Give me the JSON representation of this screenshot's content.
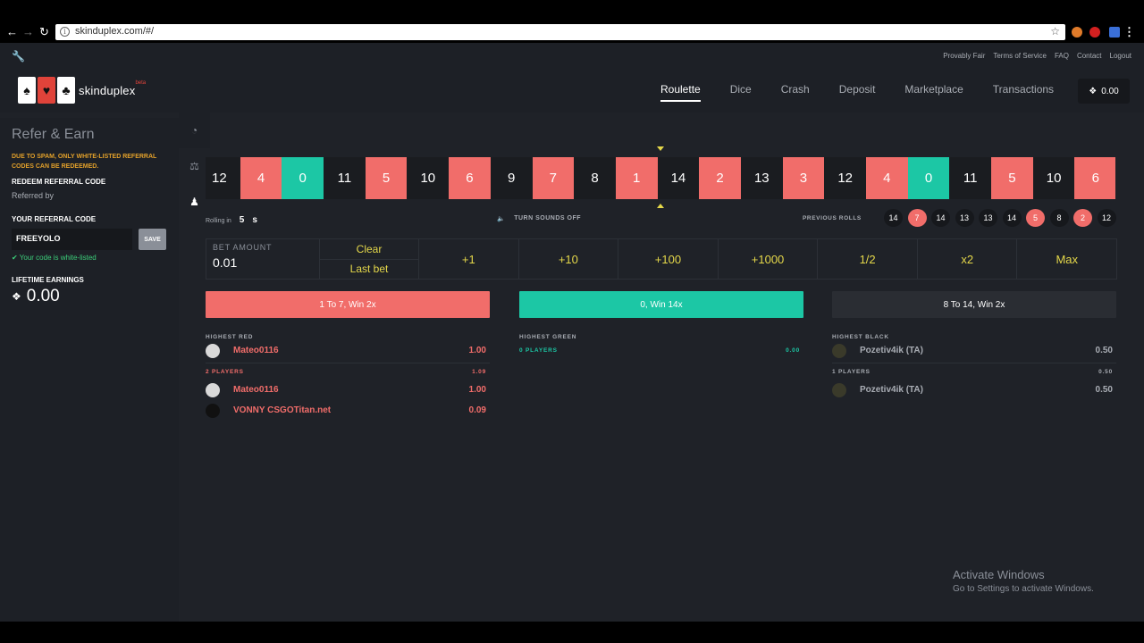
{
  "browser": {
    "url": "skinduplex.com/#/"
  },
  "site": {
    "top_links": [
      "Provably Fair",
      "Terms of Service",
      "FAQ",
      "Contact",
      "Logout"
    ],
    "logo_text": "skinduplex",
    "logo_beta": "beta",
    "nav": [
      "Roulette",
      "Dice",
      "Crash",
      "Deposit",
      "Marketplace",
      "Transactions"
    ],
    "balance": "0.00"
  },
  "sidebar": {
    "title": "Refer & Earn",
    "warning": "DUE TO SPAM, ONLY WHITE-LISTED REFERRAL CODES CAN BE REDEEMED.",
    "redeem_label": "REDEEM REFERRAL CODE",
    "referred_by": "Referred by",
    "your_code_label": "YOUR REFERRAL CODE",
    "code_value": "FREEYOLO",
    "save_label": "SAVE",
    "whitelisted": "Your code is white-listed",
    "lifetime_label": "LIFETIME EARNINGS",
    "lifetime_value": "0.00"
  },
  "roulette": {
    "strip": [
      {
        "n": "12",
        "c": "black"
      },
      {
        "n": "4",
        "c": "red"
      },
      {
        "n": "0",
        "c": "green"
      },
      {
        "n": "11",
        "c": "black"
      },
      {
        "n": "5",
        "c": "red"
      },
      {
        "n": "10",
        "c": "black"
      },
      {
        "n": "6",
        "c": "red"
      },
      {
        "n": "9",
        "c": "black"
      },
      {
        "n": "7",
        "c": "red"
      },
      {
        "n": "8",
        "c": "black"
      },
      {
        "n": "1",
        "c": "red"
      },
      {
        "n": "14",
        "c": "black"
      },
      {
        "n": "2",
        "c": "red"
      },
      {
        "n": "13",
        "c": "black"
      },
      {
        "n": "3",
        "c": "red"
      },
      {
        "n": "12",
        "c": "black"
      },
      {
        "n": "4",
        "c": "red"
      },
      {
        "n": "0",
        "c": "green"
      },
      {
        "n": "11",
        "c": "black"
      },
      {
        "n": "5",
        "c": "red"
      },
      {
        "n": "10",
        "c": "black"
      },
      {
        "n": "6",
        "c": "red"
      }
    ],
    "rolling_label": "Rolling in",
    "rolling_secs": "5",
    "rolling_unit": "s",
    "sound_label": "TURN SOUNDS OFF",
    "previous_label": "PREVIOUS ROLLS",
    "previous": [
      {
        "n": "14",
        "c": "black"
      },
      {
        "n": "7",
        "c": "red"
      },
      {
        "n": "14",
        "c": "black"
      },
      {
        "n": "13",
        "c": "black"
      },
      {
        "n": "13",
        "c": "black"
      },
      {
        "n": "14",
        "c": "black"
      },
      {
        "n": "5",
        "c": "red"
      },
      {
        "n": "8",
        "c": "black"
      },
      {
        "n": "2",
        "c": "red"
      },
      {
        "n": "12",
        "c": "black"
      }
    ]
  },
  "bet": {
    "amount_label": "BET AMOUNT",
    "amount_value": "0.01",
    "clear": "Clear",
    "last_bet": "Last bet",
    "buttons": [
      "+1",
      "+10",
      "+100",
      "+1000",
      "1/2",
      "x2",
      "Max"
    ]
  },
  "place": {
    "red": "1 To 7, Win 2x",
    "green": "0, Win 14x",
    "black": "8 To 14, Win 2x"
  },
  "lists": {
    "red": {
      "header": "HIGHEST RED",
      "top": {
        "name": "Mateo0116",
        "amt": "1.00"
      },
      "players": "2 PLAYERS",
      "total": "1.09",
      "rows": [
        {
          "name": "Mateo0116",
          "amt": "1.00"
        },
        {
          "name": "VONNY CSGOTitan.net",
          "amt": "0.09"
        }
      ]
    },
    "green": {
      "header": "HIGHEST GREEN",
      "players": "0 PLAYERS",
      "total": "0.00"
    },
    "black": {
      "header": "HIGHEST BLACK",
      "top": {
        "name": "Pozetiv4ik (TA)",
        "amt": "0.50"
      },
      "players": "1 PLAYERS",
      "total": "0.50",
      "rows": [
        {
          "name": "Pozetiv4ik (TA)",
          "amt": "0.50"
        }
      ]
    }
  },
  "watermark": {
    "title": "Activate Windows",
    "sub": "Go to Settings to activate Windows."
  }
}
